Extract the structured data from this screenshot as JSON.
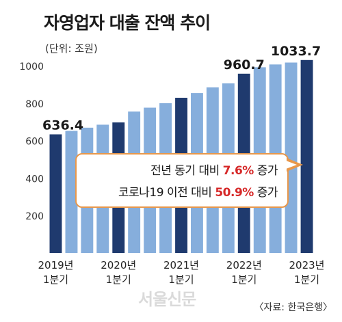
{
  "title": "자영업자 대출 잔액 추이",
  "unit": "(단위: 조원)",
  "source": "〈자료: 한국은행〉",
  "watermark": "서울신문",
  "colors": {
    "dark": "#1f3a6e",
    "light": "#86aedc",
    "accent": "#d62828",
    "callout_border": "#e8974a"
  },
  "callout": {
    "line1_prefix": "전년 동기 대비",
    "line1_value": "7.6%",
    "line1_suffix": "증가",
    "line2_prefix": "코로나19 이전 대비",
    "line2_value": "50.9%",
    "line2_suffix": "증가"
  },
  "chart_data": {
    "type": "bar",
    "title": "자영업자 대출 잔액 추이",
    "unit": "조원",
    "ylim": [
      200,
      1080
    ],
    "yticks": [
      200,
      400,
      600,
      800,
      1000
    ],
    "grid": false,
    "values": [
      636.4,
      655,
      672,
      688,
      700,
      758,
      779,
      803,
      832,
      857,
      888,
      909,
      960.7,
      995,
      1010,
      1020,
      1033.7
    ],
    "highlighted": [
      0,
      4,
      8,
      12,
      16
    ],
    "value_labels": {
      "0": "636.4",
      "12": "960.7",
      "16": "1033.7"
    },
    "x_labels": [
      {
        "index": 0,
        "year": "2019년",
        "q": "1분기"
      },
      {
        "index": 4,
        "year": "2020년",
        "q": "1분기"
      },
      {
        "index": 8,
        "year": "2021년",
        "q": "1분기"
      },
      {
        "index": 12,
        "year": "2022년",
        "q": "1분기"
      },
      {
        "index": 16,
        "year": "2023년",
        "q": "1분기"
      }
    ]
  }
}
